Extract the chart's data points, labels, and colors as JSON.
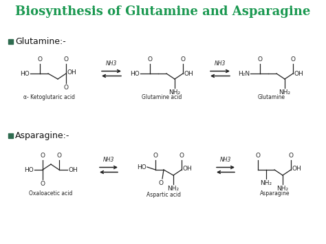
{
  "title": "Biosynthesis of Glutamine and Asparagine",
  "title_color": "#1a9850",
  "title_fontsize": 13,
  "bg_color": "#ffffff",
  "bullet_color": "#2e6b4f",
  "bullet1_text": "Glutamine:-",
  "bullet2_text": "Asparagine:-",
  "arrow_label": "NH3",
  "compound_labels_row1": [
    "α- Ketoglutaric acid",
    "Glutamine acid",
    "Glutamine"
  ],
  "compound_labels_row2": [
    "Oxaloacetic acid",
    "Aspartic acid",
    "Asparagine"
  ],
  "label_fontsize": 5.5,
  "bullet_fontsize": 9,
  "mol_fontsize": 6.5,
  "lc": "#222222",
  "lw": 0.9
}
